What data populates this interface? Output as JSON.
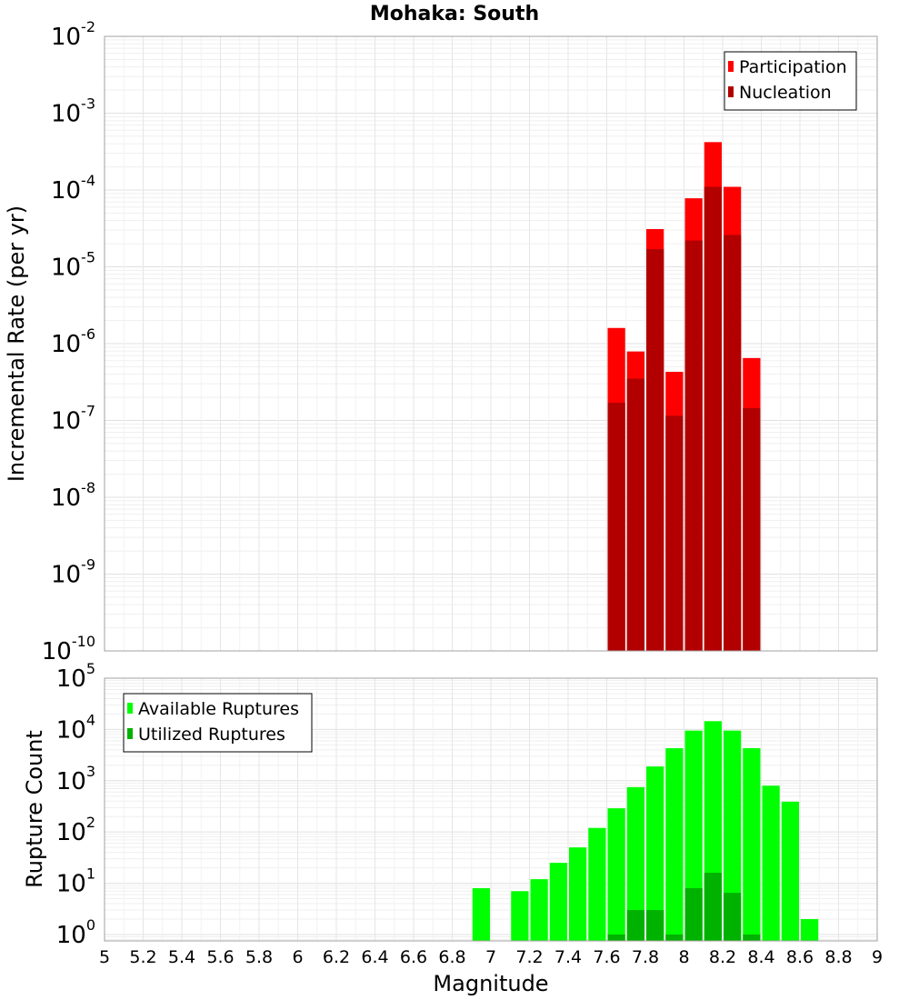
{
  "chart_data": [
    {
      "type": "bar",
      "title": "Mohaka: South",
      "xlabel": "",
      "ylabel": "Incremental Rate (per yr)",
      "yscale": "log",
      "ylim": [
        1e-10,
        0.01
      ],
      "xlim": [
        5,
        9
      ],
      "bin_width": 0.1,
      "legend": "top-right",
      "grid": true,
      "y_tick_exponents": [
        "-10",
        "-9",
        "-8",
        "-7",
        "-6",
        "-5",
        "-4",
        "-3",
        "-2"
      ],
      "y_tick_base": "10",
      "series": [
        {
          "name": "Participation",
          "color": "#ff0000",
          "x": [
            7.65,
            7.75,
            7.85,
            7.95,
            8.05,
            8.15,
            8.25,
            8.35
          ],
          "values": [
            1.6e-06,
            7.9e-07,
            3.1e-05,
            4.3e-07,
            7.8e-05,
            0.00042,
            0.00011,
            6.5e-07
          ]
        },
        {
          "name": "Nucleation",
          "color": "#b20000",
          "x": [
            7.65,
            7.75,
            7.85,
            7.95,
            8.05,
            8.15,
            8.25,
            8.35
          ],
          "values": [
            1.7e-07,
            3.5e-07,
            1.7e-05,
            1.15e-07,
            2.2e-05,
            0.00011,
            2.6e-05,
            1.45e-07
          ]
        }
      ]
    },
    {
      "type": "bar",
      "title": "",
      "xlabel": "Magnitude",
      "ylabel": "Rupture Count",
      "yscale": "log",
      "ylim": [
        0.75,
        100000.0
      ],
      "xlim": [
        5,
        9
      ],
      "bin_width": 0.1,
      "legend": "top-left",
      "grid": true,
      "y_tick_exponents": [
        "0",
        "1",
        "2",
        "3",
        "4",
        "5"
      ],
      "y_tick_base": "10",
      "x_ticks": [
        "5",
        "5.2",
        "5.4",
        "5.6",
        "5.8",
        "6",
        "6.2",
        "6.4",
        "6.6",
        "6.8",
        "7",
        "7.2",
        "7.4",
        "7.6",
        "7.8",
        "8",
        "8.2",
        "8.4",
        "8.6",
        "8.8",
        "9"
      ],
      "series": [
        {
          "name": "Available Ruptures",
          "color": "#00ff00",
          "x": [
            6.95,
            7.15,
            7.25,
            7.35,
            7.45,
            7.55,
            7.65,
            7.75,
            7.85,
            7.95,
            8.05,
            8.15,
            8.25,
            8.35,
            8.45,
            8.55,
            8.65
          ],
          "values": [
            8,
            7,
            12,
            25,
            50,
            120,
            290,
            750,
            1900,
            4300,
            9500,
            14500,
            9500,
            4300,
            800,
            390,
            2
          ]
        },
        {
          "name": "Utilized Ruptures",
          "color": "#00b200",
          "x": [
            7.65,
            7.75,
            7.85,
            7.95,
            8.05,
            8.15,
            8.25,
            8.35
          ],
          "values": [
            1,
            3,
            3,
            1,
            8,
            16,
            6.5,
            1
          ]
        }
      ]
    }
  ]
}
